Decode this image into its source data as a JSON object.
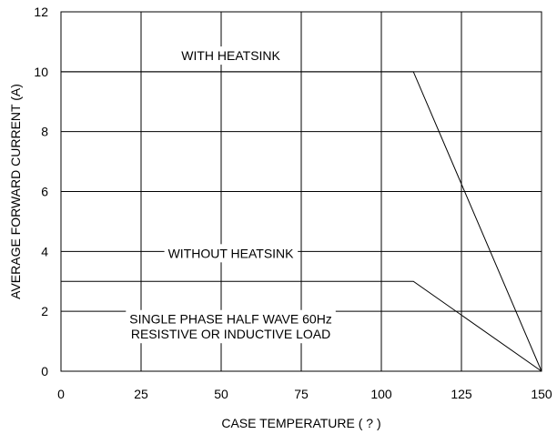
{
  "chart_data": {
    "type": "line",
    "xlabel": "CASE TEMPERATURE ( ? )",
    "ylabel": "AVERAGE FORWARD  CURRENT (A)",
    "xlim": [
      0,
      150
    ],
    "ylim": [
      0,
      12
    ],
    "xticks": [
      0,
      25,
      50,
      75,
      100,
      125,
      150
    ],
    "yticks": [
      0,
      2,
      4,
      6,
      8,
      10,
      12
    ],
    "grid": true,
    "series": [
      {
        "x": [
          0,
          110,
          150
        ],
        "y": [
          10,
          10,
          0
        ]
      },
      {
        "x": [
          0,
          110,
          150
        ],
        "y": [
          3,
          3,
          0
        ]
      }
    ],
    "annotations": [
      {
        "text": "WITH HEATSINK",
        "x": 53,
        "y": 10.5
      },
      {
        "text": "WITHOUT HEATSINK",
        "x": 53,
        "y": 3.9
      },
      {
        "text": "SINGLE PHASE HALF WAVE 60Hz",
        "x": 53,
        "y": 1.7
      },
      {
        "text": "RESISTIVE OR INDUCTIVE LOAD",
        "x": 53,
        "y": 1.2
      }
    ]
  }
}
